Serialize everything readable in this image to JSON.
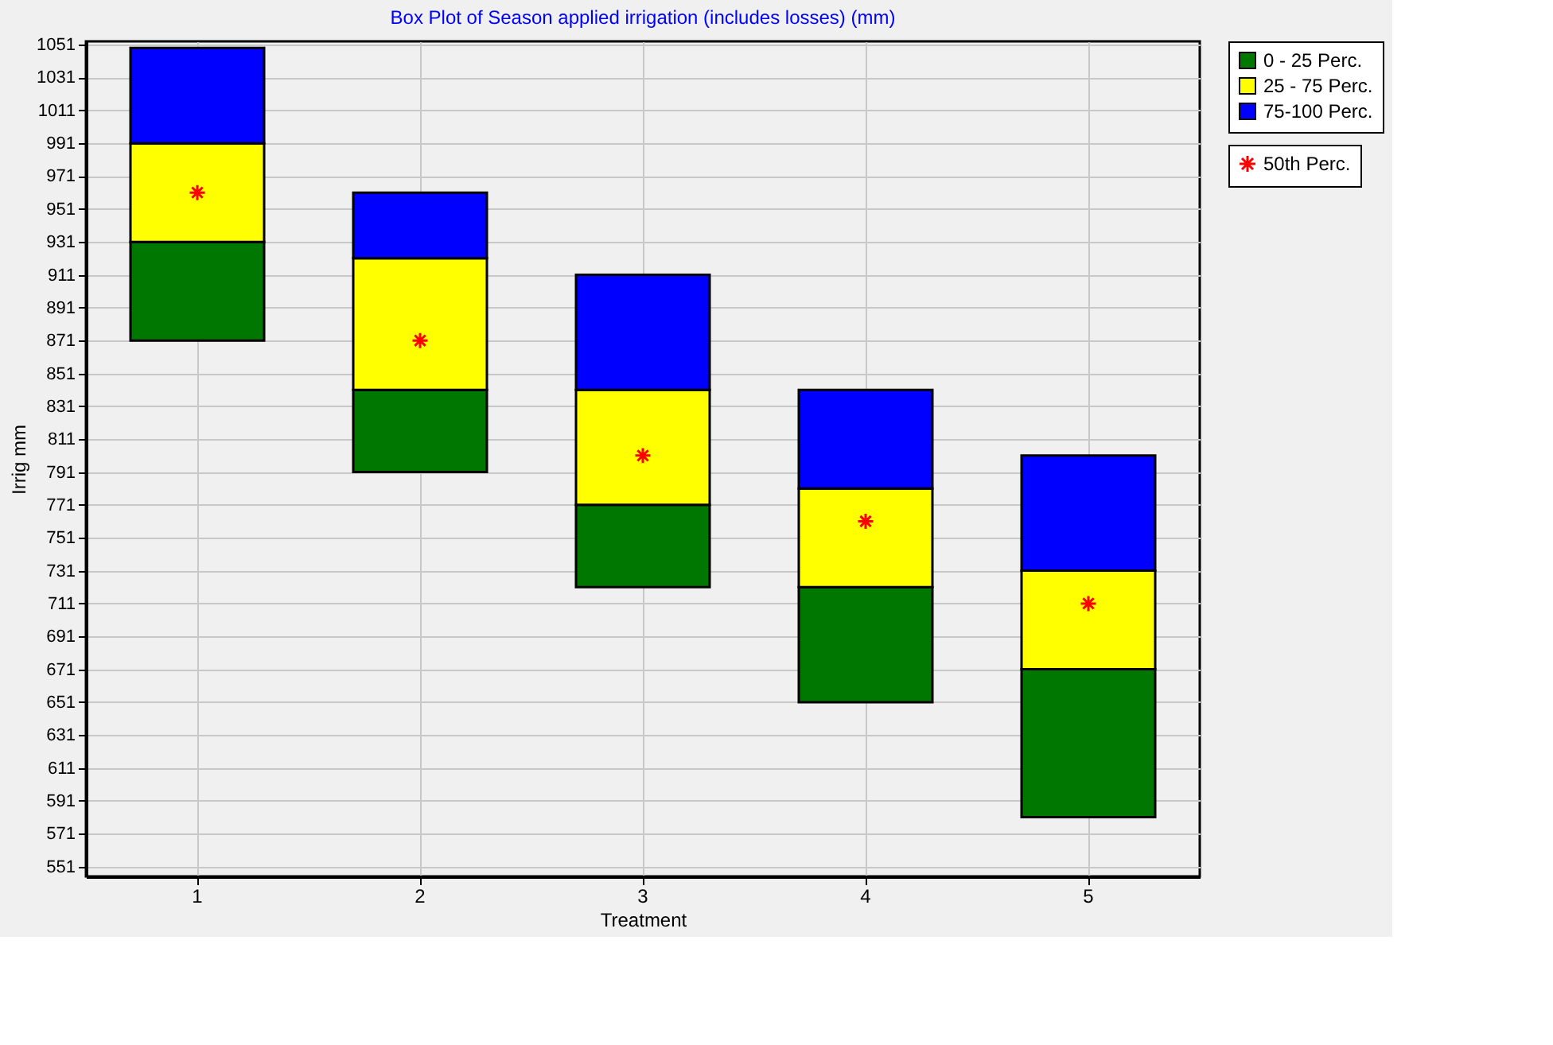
{
  "chart_data": {
    "type": "bar",
    "title": "Box Plot of Season applied irrigation (includes losses) (mm)",
    "xlabel": "Treatment",
    "ylabel": "Irrig mm",
    "categories": [
      "1",
      "2",
      "3",
      "4",
      "5"
    ],
    "series": [
      {
        "name": "0 - 25 Perc.",
        "color": "#007800",
        "base": [
          871,
          791,
          721,
          651,
          581
        ],
        "values": [
          60,
          50,
          50,
          70,
          90
        ]
      },
      {
        "name": "25 - 75 Perc.",
        "color": "#ffff00",
        "base": [
          931,
          841,
          771,
          721,
          671
        ],
        "values": [
          60,
          80,
          70,
          60,
          60
        ]
      },
      {
        "name": "75-100 Perc.",
        "color": "#0000ff",
        "base": [
          991,
          921,
          841,
          781,
          731
        ],
        "values": [
          58,
          40,
          70,
          60,
          70
        ]
      },
      {
        "name": "50th Perc.",
        "type": "scatter",
        "color": "#ff0000",
        "marker": "cross",
        "x": [
          "1",
          "2",
          "3",
          "4",
          "5"
        ],
        "values": [
          961,
          871,
          801,
          761,
          711
        ]
      }
    ],
    "ylim": [
      545,
      1053
    ],
    "yticks": [
      551,
      571,
      591,
      611,
      631,
      651,
      671,
      691,
      711,
      731,
      751,
      771,
      791,
      811,
      831,
      851,
      871,
      891,
      911,
      931,
      951,
      971,
      991,
      1011,
      1031,
      1051
    ],
    "grid": true,
    "legend": "top right"
  }
}
